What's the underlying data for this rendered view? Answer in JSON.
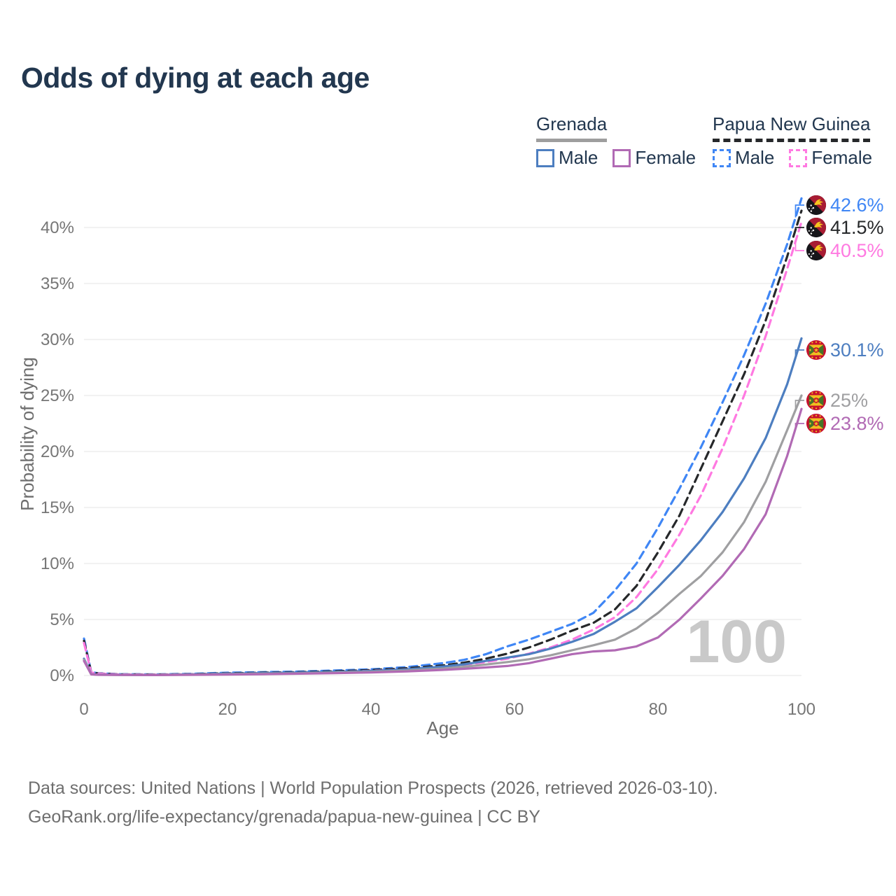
{
  "header": {
    "title": "Odds of dying at each age"
  },
  "legend": {
    "groups": [
      {
        "id": "grenada",
        "title": "Grenada",
        "line_style": "solid",
        "underline_color": "#9e9e9e",
        "items": [
          {
            "label": "Male",
            "color": "#4d7ec0",
            "style": "solid"
          },
          {
            "label": "Female",
            "color": "#b16ab4",
            "style": "solid"
          }
        ]
      },
      {
        "id": "papua-new-guinea",
        "title": "Papua New Guinea",
        "line_style": "dashed",
        "underline_color": "#26282a",
        "items": [
          {
            "label": "Male",
            "color": "#3f86f5",
            "style": "dashed"
          },
          {
            "label": "Female",
            "color": "#ff79e1",
            "style": "dashed"
          }
        ]
      }
    ]
  },
  "chart_data": {
    "type": "line",
    "title": "Odds of dying at each age",
    "xlabel": "Age",
    "ylabel": "Probability of dying",
    "xlim": [
      0,
      100
    ],
    "ylim_percent": [
      0,
      43
    ],
    "grid": "horizontal",
    "legend_position": "top-right",
    "watermark": "100",
    "x_ticks": [
      0,
      20,
      40,
      60,
      80,
      100
    ],
    "x_tick_labels": [
      "0",
      "20",
      "40",
      "60",
      "80",
      "100"
    ],
    "y_ticks_percent": [
      0,
      5,
      10,
      15,
      20,
      25,
      30,
      35,
      40
    ],
    "y_tick_labels": [
      "0%",
      "5%",
      "10%",
      "15%",
      "20%",
      "25%",
      "30%",
      "35%",
      "40%"
    ],
    "x": [
      0,
      1,
      2,
      5,
      10,
      15,
      20,
      25,
      30,
      35,
      40,
      45,
      50,
      53,
      56,
      59,
      62,
      65,
      68,
      71,
      74,
      77,
      80,
      83,
      86,
      89,
      92,
      95,
      98,
      100
    ],
    "series": [
      {
        "id": "png-male",
        "name": "Papua New Guinea Male",
        "country": "Papua New Guinea",
        "sex": "Male",
        "style": "dashed",
        "color": "#3f86f5",
        "flag": "png",
        "end_label": "42.6%",
        "end_value_percent": 42.6,
        "values": [
          3.3,
          0.3,
          0.2,
          0.12,
          0.1,
          0.15,
          0.25,
          0.3,
          0.35,
          0.45,
          0.55,
          0.75,
          1.1,
          1.4,
          1.9,
          2.6,
          3.2,
          3.9,
          4.6,
          5.6,
          7.6,
          10.0,
          13.2,
          16.7,
          20.4,
          24.4,
          28.6,
          33.2,
          38.5,
          42.6
        ]
      },
      {
        "id": "png-both",
        "name": "Papua New Guinea Both sexes",
        "country": "Papua New Guinea",
        "sex": "Both sexes",
        "style": "dashed",
        "color": "#26282a",
        "flag": "png",
        "end_label": "41.5%",
        "end_value_percent": 41.5,
        "values": [
          3.1,
          0.28,
          0.18,
          0.1,
          0.08,
          0.12,
          0.2,
          0.25,
          0.3,
          0.38,
          0.48,
          0.65,
          0.9,
          1.15,
          1.5,
          1.95,
          2.5,
          3.2,
          4.0,
          4.7,
          5.9,
          8.0,
          11.0,
          14.3,
          18.5,
          22.7,
          26.9,
          31.7,
          37.4,
          41.5
        ]
      },
      {
        "id": "png-female",
        "name": "Papua New Guinea Female",
        "country": "Papua New Guinea",
        "sex": "Female",
        "style": "dashed",
        "color": "#ff79e1",
        "flag": "png",
        "end_label": "40.5%",
        "end_value_percent": 40.5,
        "values": [
          2.9,
          0.26,
          0.16,
          0.09,
          0.07,
          0.1,
          0.16,
          0.2,
          0.25,
          0.32,
          0.42,
          0.55,
          0.75,
          0.95,
          1.2,
          1.5,
          1.95,
          2.5,
          3.2,
          4.1,
          5.2,
          7.0,
          9.5,
          12.6,
          16.1,
          20.3,
          25.0,
          30.3,
          36.3,
          40.5
        ]
      },
      {
        "id": "grd-male",
        "name": "Grenada Male",
        "country": "Grenada",
        "sex": "Male",
        "style": "solid",
        "color": "#4d7ec0",
        "flag": "grd",
        "end_label": "30.1%",
        "end_value_percent": 30.1,
        "values": [
          1.5,
          0.12,
          0.08,
          0.06,
          0.05,
          0.1,
          0.16,
          0.21,
          0.26,
          0.32,
          0.4,
          0.55,
          0.8,
          1.0,
          1.3,
          1.6,
          1.9,
          2.4,
          3.0,
          3.7,
          4.8,
          6.0,
          7.9,
          9.9,
          12.1,
          14.6,
          17.6,
          21.2,
          26.0,
          30.1
        ]
      },
      {
        "id": "grd-both",
        "name": "Grenada Both sexes",
        "country": "Grenada",
        "sex": "Both sexes",
        "style": "solid",
        "color": "#9f9fa1",
        "flag": "grd",
        "end_label": "25%",
        "end_value_percent": 25,
        "values": [
          1.4,
          0.11,
          0.07,
          0.05,
          0.05,
          0.08,
          0.12,
          0.16,
          0.2,
          0.26,
          0.33,
          0.45,
          0.62,
          0.78,
          0.98,
          1.2,
          1.45,
          1.8,
          2.25,
          2.7,
          3.2,
          4.2,
          5.6,
          7.3,
          8.9,
          11.0,
          13.7,
          17.3,
          21.9,
          25.0
        ]
      },
      {
        "id": "grd-female",
        "name": "Grenada Female",
        "country": "Grenada",
        "sex": "Female",
        "style": "solid",
        "color": "#b16ab4",
        "flag": "grd",
        "end_label": "23.8%",
        "end_value_percent": 23.8,
        "values": [
          1.3,
          0.1,
          0.06,
          0.05,
          0.04,
          0.06,
          0.09,
          0.12,
          0.16,
          0.21,
          0.27,
          0.36,
          0.5,
          0.6,
          0.72,
          0.85,
          1.1,
          1.5,
          1.9,
          2.15,
          2.25,
          2.6,
          3.4,
          5.0,
          6.9,
          8.9,
          11.3,
          14.4,
          19.6,
          23.8
        ]
      }
    ]
  },
  "footer": {
    "line1": "Data sources: United Nations | World Population Prospects (2026, retrieved 2026-03-10).",
    "line2": "GeoRank.org/life-expectancy/grenada/papua-new-guinea | CC BY"
  }
}
